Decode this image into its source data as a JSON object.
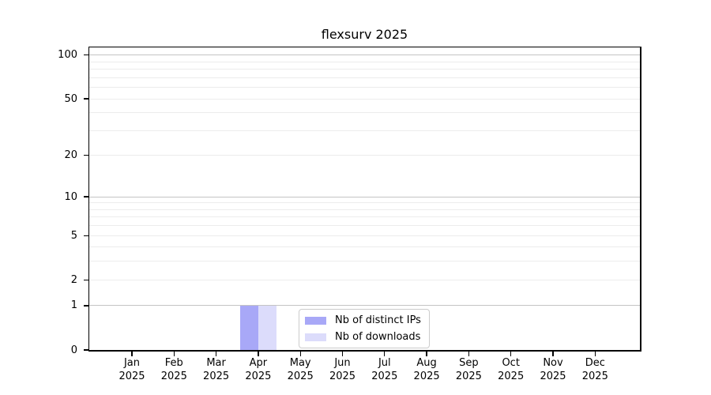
{
  "chart_data": {
    "type": "bar",
    "title": "flexsurv 2025",
    "x_labels": [
      {
        "month": "Jan",
        "year": "2025"
      },
      {
        "month": "Feb",
        "year": "2025"
      },
      {
        "month": "Mar",
        "year": "2025"
      },
      {
        "month": "Apr",
        "year": "2025"
      },
      {
        "month": "May",
        "year": "2025"
      },
      {
        "month": "Jun",
        "year": "2025"
      },
      {
        "month": "Jul",
        "year": "2025"
      },
      {
        "month": "Aug",
        "year": "2025"
      },
      {
        "month": "Sep",
        "year": "2025"
      },
      {
        "month": "Oct",
        "year": "2025"
      },
      {
        "month": "Nov",
        "year": "2025"
      },
      {
        "month": "Dec",
        "year": "2025"
      }
    ],
    "series": [
      {
        "name": "Nb of distinct IPs",
        "color": "#a8a8f7",
        "values": [
          0,
          0,
          0,
          1,
          0,
          0,
          0,
          0,
          0,
          0,
          0,
          0
        ]
      },
      {
        "name": "Nb of downloads",
        "color": "#dcdcfb",
        "values": [
          0,
          0,
          0,
          1,
          0,
          0,
          0,
          0,
          0,
          0,
          0,
          0
        ]
      }
    ],
    "y_scale": "log1p",
    "ylim": [
      0,
      113
    ],
    "yticks": {
      "values": [
        0,
        1,
        2,
        5,
        10,
        20,
        50,
        100
      ],
      "labels": [
        "0",
        "1",
        "2",
        "5",
        "10",
        "20",
        "50",
        "100"
      ]
    },
    "grid": {
      "major_at": [
        1,
        10,
        100
      ],
      "minor_at": [
        2,
        3,
        4,
        5,
        6,
        7,
        8,
        9,
        20,
        30,
        40,
        50,
        60,
        70,
        80,
        90
      ],
      "major_color": "#c4c4c4",
      "minor_color": "#ececec"
    },
    "legend": {
      "position": "lower center"
    },
    "axis_color": "#000000"
  }
}
